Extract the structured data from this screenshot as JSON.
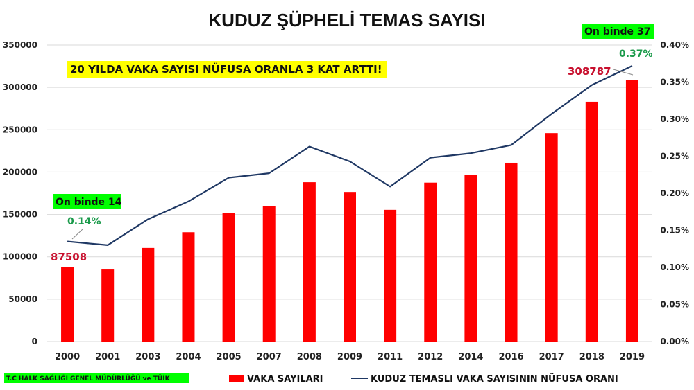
{
  "colors": {
    "bar": "#ff0000",
    "line": "#1f3864",
    "grid": "#d9d9d9",
    "highlight_green": "#00ff00",
    "highlight_yellow": "#ffff00",
    "label_red": "#c8102e",
    "label_green": "#1a9a4a"
  },
  "chart_data": {
    "type": "bar",
    "title": "KUDUZ ŞÜPHELİ TEMAS SAYISI",
    "categories": [
      "2000",
      "2001",
      "2003",
      "2004",
      "2005",
      "2007",
      "2008",
      "2009",
      "2011",
      "2012",
      "2014",
      "2016",
      "2017",
      "2018",
      "2019"
    ],
    "series": [
      {
        "name": "VAKA SAYILARI",
        "type": "bar",
        "axis": "left",
        "values": [
          87508,
          85000,
          110500,
          129000,
          152000,
          159500,
          188000,
          176500,
          155500,
          187500,
          197000,
          211000,
          246000,
          283000,
          308787
        ]
      },
      {
        "name": "KUDUZ TEMASLI VAKA SAYISININ NÜFUSA ORANI",
        "type": "line",
        "axis": "right",
        "values": [
          0.135,
          0.13,
          0.165,
          0.189,
          0.221,
          0.227,
          0.263,
          0.243,
          0.209,
          0.248,
          0.254,
          0.265,
          0.307,
          0.346,
          0.372
        ]
      }
    ],
    "y_left": {
      "min": 0,
      "max": 350000,
      "ticks": [
        "0",
        "50000",
        "100000",
        "150000",
        "200000",
        "250000",
        "300000",
        "350000"
      ]
    },
    "y_right": {
      "min": 0,
      "max": 0.4,
      "ticks": [
        "0.00%",
        "0.05%",
        "0.10%",
        "0.15%",
        "0.20%",
        "0.25%",
        "0.30%",
        "0.35%",
        "0.40%"
      ]
    },
    "grid": true,
    "legend_position": "bottom"
  },
  "annotations": {
    "headline": "20 YILDA VAKA SAYISI NÜFUSA ORANLA 3 KAT ARTTI!",
    "start_box": "On binde 14",
    "start_pct": "0.14%",
    "start_value": "87508",
    "end_box": "On binde 37",
    "end_pct": "0.37%",
    "end_value": "308787"
  },
  "source": "T.C HALK SAĞLIĞI GENEL MÜDÜRLÜĞÜ  ve TÜİK"
}
